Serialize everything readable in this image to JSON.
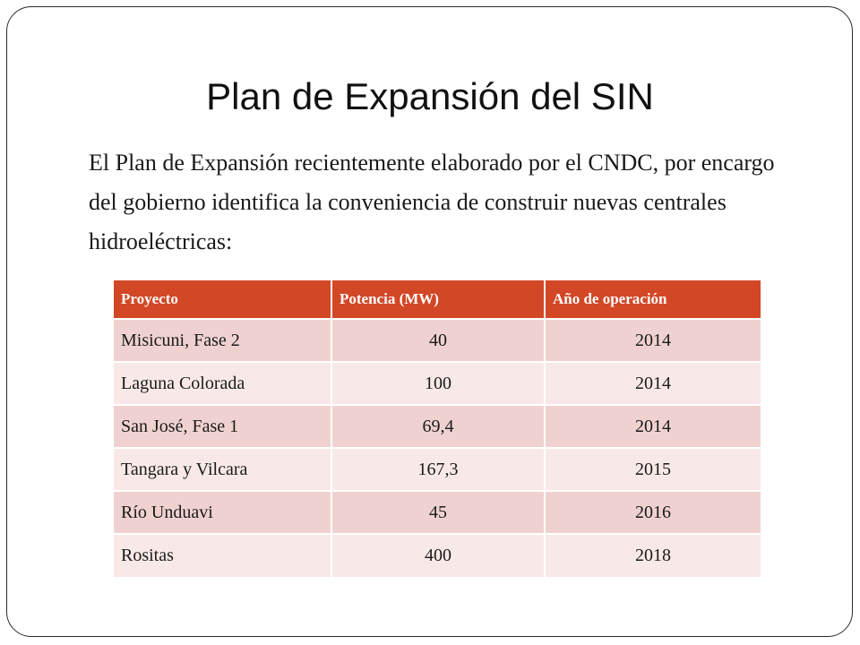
{
  "slide": {
    "title": "Plan de Expansión del SIN",
    "body": "El Plan de Expansión recientemente elaborado por el CNDC, por encargo del gobierno identifica la conveniencia de construir nuevas centrales hidroeléctricas:"
  },
  "table": {
    "headers": [
      "Proyecto",
      "Potencia (MW)",
      "Año de operación"
    ],
    "rows": [
      [
        "Misicuni, Fase 2",
        "40",
        "2014"
      ],
      [
        "Laguna Colorada",
        "100",
        "2014"
      ],
      [
        "San José, Fase 1",
        "69,4",
        "2014"
      ],
      [
        "Tangara y Vilcara",
        "167,3",
        "2015"
      ],
      [
        "Río Unduavi",
        "45",
        "2016"
      ],
      [
        "Rositas",
        "400",
        "2018"
      ]
    ]
  },
  "colors": {
    "header_bg": "#d24726",
    "row_odd": "#efd2cf",
    "row_even": "#f8e9e8"
  }
}
